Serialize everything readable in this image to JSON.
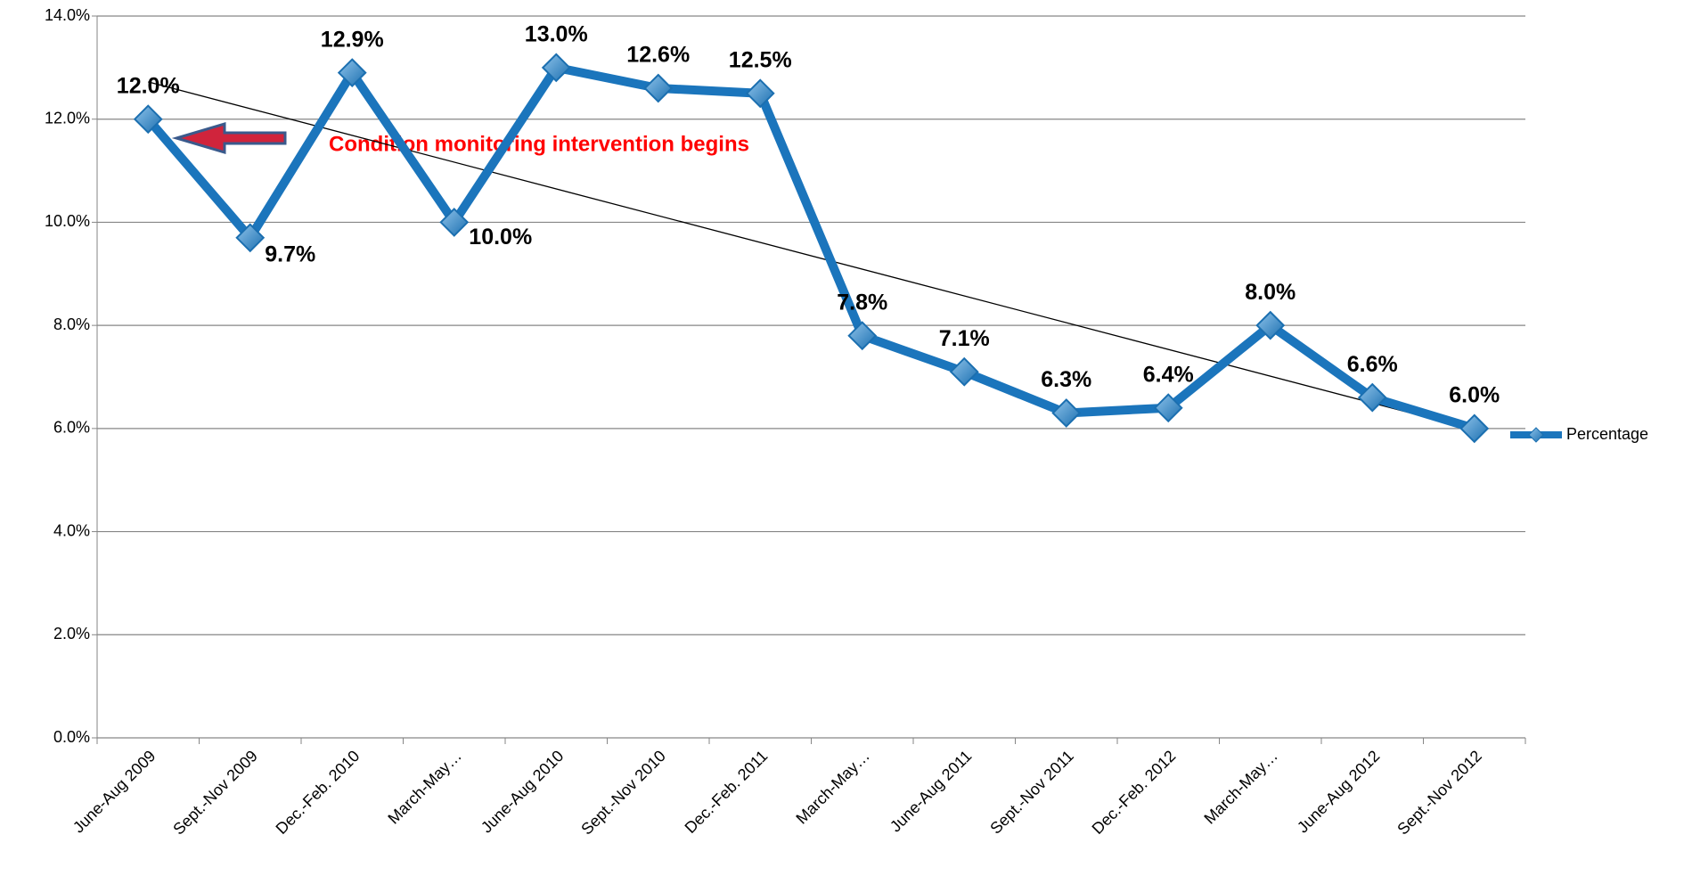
{
  "chart_data": {
    "type": "line",
    "categories": [
      "June-Aug 2009",
      "Sept.-Nov 2009",
      "Dec.-Feb. 2010",
      "March-May…",
      "June-Aug 2010",
      "Sept.-Nov 2010",
      "Dec.-Feb. 2011",
      "March-May…",
      "June-Aug 2011",
      "Sept.-Nov 2011",
      "Dec.-Feb. 2012",
      "March-May…",
      "June-Aug 2012",
      "Sept.-Nov 2012"
    ],
    "series": [
      {
        "name": "Percentage",
        "color": "#1b75bc",
        "values": [
          12.0,
          9.7,
          12.9,
          10.0,
          13.0,
          12.6,
          12.5,
          7.8,
          7.1,
          6.3,
          6.4,
          8.0,
          6.6,
          6.0
        ],
        "value_labels": [
          "12.0%",
          "9.7%",
          "12.9%",
          "10.0%",
          "13.0%",
          "12.6%",
          "12.5%",
          "7.8%",
          "7.1%",
          "6.3%",
          "6.4%",
          "8.0%",
          "6.6%",
          "6.0%"
        ]
      }
    ],
    "ylim": [
      0,
      14
    ],
    "yticks": [
      {
        "value": 0,
        "label": "0.0%"
      },
      {
        "value": 2,
        "label": "2.0%"
      },
      {
        "value": 4,
        "label": "4.0%"
      },
      {
        "value": 6,
        "label": "6.0%"
      },
      {
        "value": 8,
        "label": "8.0%"
      },
      {
        "value": 10,
        "label": "10.0%"
      },
      {
        "value": 12,
        "label": "12.0%"
      },
      {
        "value": 14,
        "label": "14.0%"
      }
    ],
    "grid": true,
    "trendline": true,
    "legend": "right",
    "annotation": "Condition monitoring intervention begins"
  }
}
